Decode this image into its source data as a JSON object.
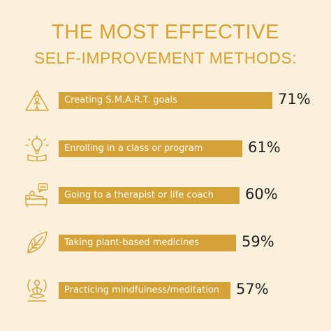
{
  "title": {
    "line1": "THE MOST EFFECTIVE",
    "line2": "SELF-IMPROVEMENT METHODS:"
  },
  "colors": {
    "accent": "#d9a230",
    "bar": "#d4a236",
    "background": "#faf0dc"
  },
  "chart_data": {
    "type": "bar",
    "orientation": "horizontal",
    "categories": [
      "Creating S.M.A.R.T. goals",
      "Enrolling in a class or program",
      "Going to a therapist or life coach",
      "Taking plant-based medicines",
      "Practicing mindfulness/meditation"
    ],
    "values": [
      71,
      61,
      60,
      59,
      57
    ],
    "value_labels": [
      "71%",
      "61%",
      "60%",
      "59%",
      "57%"
    ],
    "icons": [
      "mountain-person-icon",
      "lightbulb-book-icon",
      "therapist-couch-icon",
      "leaf-icon",
      "meditation-icon"
    ],
    "title": "THE MOST EFFECTIVE SELF-IMPROVEMENT METHODS:",
    "xlabel": "",
    "ylabel": ""
  }
}
